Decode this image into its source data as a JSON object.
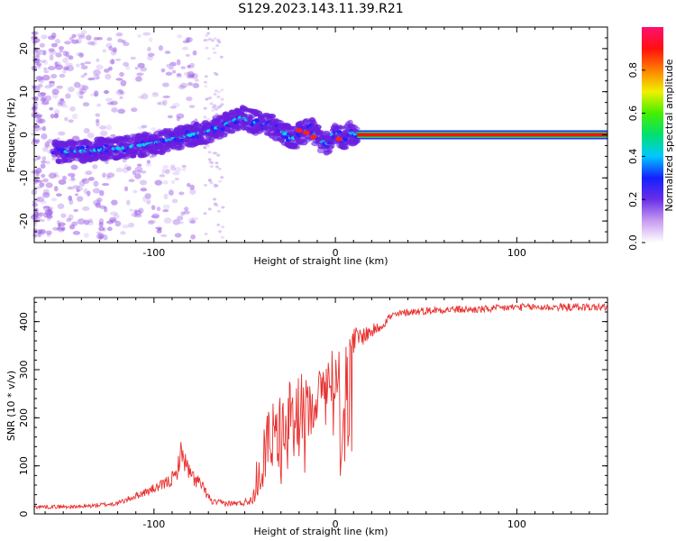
{
  "title": "S129.2023.143.11.39.R21",
  "colors": {
    "spectrum_point": "#8a2be2",
    "snr_line": "#e8312f",
    "axis": "#000000"
  },
  "chart_data": [
    {
      "type": "heatmap",
      "xlabel": "Height of straight line (km)",
      "ylabel": "Frequency (Hz)",
      "xlim": [
        -166,
        150
      ],
      "ylim": [
        -25,
        25
      ],
      "xticks": [
        -100,
        0,
        100
      ],
      "yticks": [
        -20,
        -10,
        0,
        10,
        20
      ],
      "grid": false,
      "description_values": {
        "carrier_frequency_hz": 0,
        "carrier_start_km": 12,
        "carrier_end_km": 150
      },
      "colorbar": {
        "label": "Normalized spectral amplitude",
        "ticks": [
          0.0,
          0.2,
          0.4,
          0.6,
          0.8
        ],
        "range": [
          0,
          1
        ],
        "colors": [
          "#ffffff",
          "#c89cf0",
          "#6a2ee8",
          "#1420ff",
          "#00c8ff",
          "#00e070",
          "#44f000",
          "#f0f000",
          "#ff8000",
          "#ff1010",
          "#ff1070"
        ]
      },
      "ridge": {
        "x": [
          -155,
          -140,
          -120,
          -100,
          -85,
          -70,
          -60,
          -52,
          -45,
          -38,
          -30,
          -24,
          -18,
          -13,
          -8,
          -4,
          0,
          4,
          8,
          12
        ],
        "y": [
          -4,
          -3.8,
          -3.2,
          -2,
          -0.5,
          0.8,
          2.5,
          4,
          3,
          2.5,
          1,
          -1,
          0.5,
          1.5,
          -1.5,
          -2,
          1,
          -1,
          0.5,
          0
        ]
      }
    },
    {
      "type": "line",
      "xlabel": "Height of straight line (km)",
      "ylabel": "SNR (10 * v/v)",
      "xlim": [
        -166,
        150
      ],
      "ylim": [
        0,
        450
      ],
      "xticks": [
        -100,
        0,
        100
      ],
      "yticks": [
        0,
        100,
        200,
        300,
        400
      ],
      "grid": false,
      "series": [
        {
          "color": "#e8312f",
          "x": [
            -166,
            -140,
            -120,
            -105,
            -95,
            -88,
            -85,
            -80,
            -75,
            -68,
            -60,
            -52,
            -46,
            -42,
            -38,
            -35,
            -32,
            -28,
            -25,
            -22,
            -18,
            -15,
            -12,
            -8,
            -4,
            -2,
            0,
            2,
            3,
            6,
            10,
            15,
            20,
            25,
            30,
            40,
            60,
            80,
            100,
            120,
            150
          ],
          "y": [
            15,
            15,
            22,
            45,
            60,
            78,
            130,
            80,
            65,
            25,
            22,
            22,
            30,
            95,
            140,
            175,
            180,
            160,
            200,
            210,
            225,
            215,
            230,
            260,
            280,
            290,
            280,
            310,
            100,
            320,
            360,
            370,
            380,
            390,
            410,
            420,
            425,
            425,
            430,
            430,
            430
          ]
        }
      ],
      "noise_amplitude": [
        4,
        4,
        5,
        8,
        12,
        18,
        25,
        20,
        15,
        6,
        6,
        6,
        10,
        60,
        70,
        75,
        80,
        80,
        80,
        80,
        70,
        60,
        55,
        50,
        50,
        60,
        50,
        40,
        10,
        40,
        30,
        20,
        15,
        10,
        10,
        8,
        8,
        8,
        8,
        8,
        8
      ]
    }
  ]
}
